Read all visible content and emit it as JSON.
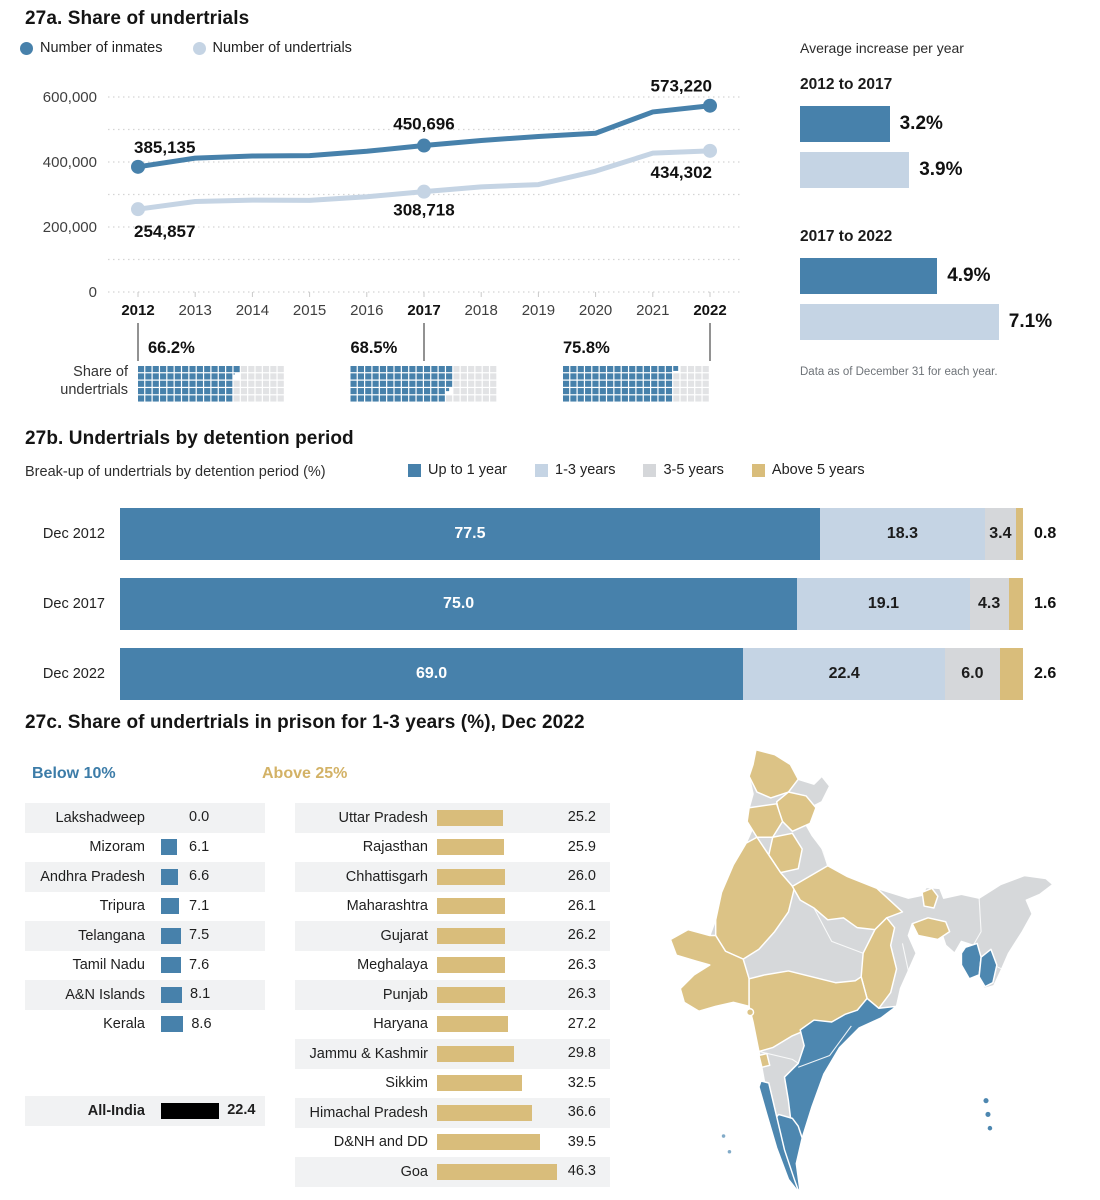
{
  "colors": {
    "dark_blue": "#4781ab",
    "light_blue": "#c5d4e4",
    "seg_gray": "#d5d7da",
    "gold": "#d9bd7b",
    "waffle_empty": "#e2e3e5",
    "row_bg": "#f1f2f3",
    "map_blue": "#4d87b0",
    "map_gold": "#dcc386",
    "map_gray": "#d6d8da",
    "black_bar": "#000000",
    "below_heading": "#3c7ca8",
    "above_heading": "#d3b266",
    "grid": "#d4d4d4",
    "axis_text": "#3f3f3f"
  },
  "fig27a": {
    "title": "27a. Share of undertrials",
    "legend": [
      {
        "label": "Number of inmates",
        "color": "dark_blue"
      },
      {
        "label": "Number of undertrials",
        "color": "light_blue"
      }
    ],
    "chart_data": {
      "type": "line",
      "x": [
        2012,
        2013,
        2014,
        2015,
        2016,
        2017,
        2018,
        2019,
        2020,
        2021,
        2022
      ],
      "bold_x": [
        2012,
        2017,
        2022
      ],
      "yticks": [
        0,
        200000,
        400000,
        600000
      ],
      "grid_step": 100000,
      "ylim": [
        0,
        650000
      ],
      "series": [
        {
          "name": "Number of inmates",
          "color": "dark_blue",
          "values": [
            385135,
            411992,
            418536,
            419623,
            433003,
            450696,
            466084,
            478600,
            488511,
            554034,
            573220
          ]
        },
        {
          "name": "Number of undertrials",
          "color": "light_blue",
          "values": [
            254857,
            278503,
            282879,
            282076,
            293058,
            308718,
            323537,
            330487,
            371848,
            427165,
            434302
          ]
        }
      ],
      "point_labels": [
        {
          "series": 0,
          "year": 2012,
          "label": "385,135"
        },
        {
          "series": 0,
          "year": 2017,
          "label": "450,696"
        },
        {
          "series": 0,
          "year": 2022,
          "label": "573,220"
        },
        {
          "series": 1,
          "year": 2012,
          "label": "254,857"
        },
        {
          "series": 1,
          "year": 2017,
          "label": "308,718"
        },
        {
          "series": 1,
          "year": 2022,
          "label": "434,302"
        }
      ]
    },
    "waffle": {
      "label_line1": "Share of",
      "label_line2": "undertrials",
      "items": [
        {
          "year": 2012,
          "pct": 66.2,
          "label": "66.2%"
        },
        {
          "year": 2017,
          "pct": 68.5,
          "label": "68.5%"
        },
        {
          "year": 2022,
          "pct": 75.8,
          "label": "75.8%"
        }
      ]
    },
    "side_panel": {
      "title": "Average increase per year",
      "groups": [
        {
          "label": "2012 to 2017",
          "bars": [
            {
              "value": 3.2,
              "label": "3.2%",
              "color": "dark_blue"
            },
            {
              "value": 3.9,
              "label": "3.9%",
              "color": "light_blue"
            }
          ]
        },
        {
          "label": "2017 to 2022",
          "bars": [
            {
              "value": 4.9,
              "label": "4.9%",
              "color": "dark_blue"
            },
            {
              "value": 7.1,
              "label": "7.1%",
              "color": "light_blue"
            }
          ]
        }
      ],
      "footnote": "Data as of December 31 for each year."
    }
  },
  "fig27b": {
    "title": "27b. Undertrials by detention period",
    "subtitle": "Break-up of undertrials by detention period (%)",
    "chart_data": {
      "type": "stacked-bar",
      "categories": [
        "Dec 2012",
        "Dec 2017",
        "Dec 2022"
      ],
      "series": [
        {
          "name": "Up to 1 year",
          "color": "dark_blue",
          "values": [
            77.5,
            75.0,
            69.0
          ]
        },
        {
          "name": "1-3 years",
          "color": "light_blue",
          "values": [
            18.3,
            19.1,
            22.4
          ]
        },
        {
          "name": "3-5 years",
          "color": "seg_gray",
          "values": [
            3.4,
            4.3,
            6.0
          ]
        },
        {
          "name": "Above 5 years",
          "color": "gold",
          "values": [
            0.8,
            1.6,
            2.6
          ]
        }
      ],
      "value_labels": [
        [
          "77.5",
          "18.3",
          "3.4",
          "0.8"
        ],
        [
          "75.0",
          "19.1",
          "4.3",
          "1.6"
        ],
        [
          "69.0",
          "22.4",
          "6.0",
          "2.6"
        ]
      ],
      "xlim": [
        0,
        100
      ]
    }
  },
  "fig27c": {
    "title": "27c. Share of undertrials in prison for 1-3 years (%), Dec 2022",
    "chart_data": {
      "type": "table",
      "below_10": [
        [
          "Lakshadweep",
          0.0
        ],
        [
          "Mizoram",
          6.1
        ],
        [
          "Andhra Pradesh",
          6.6
        ],
        [
          "Tripura",
          7.1
        ],
        [
          "Telangana",
          7.5
        ],
        [
          "Tamil Nadu",
          7.6
        ],
        [
          "A&N Islands",
          8.1
        ],
        [
          "Kerala",
          8.6
        ]
      ],
      "all_india": [
        "All-India",
        22.4
      ],
      "above_25": [
        [
          "Uttar Pradesh",
          25.2
        ],
        [
          "Rajasthan",
          25.9
        ],
        [
          "Chhattisgarh",
          26.0
        ],
        [
          "Maharashtra",
          26.1
        ],
        [
          "Gujarat",
          26.2
        ],
        [
          "Meghalaya",
          26.3
        ],
        [
          "Punjab",
          26.3
        ],
        [
          "Haryana",
          27.2
        ],
        [
          "Jammu & Kashmir",
          29.8
        ],
        [
          "Sikkim",
          32.5
        ],
        [
          "Himachal Pradesh",
          36.6
        ],
        [
          "D&NH and DD",
          39.5
        ],
        [
          "Goa",
          46.3
        ]
      ]
    },
    "below": {
      "heading": "Below 10%",
      "rows": [
        {
          "state": "Lakshadweep",
          "value": "0.0"
        },
        {
          "state": "Mizoram",
          "value": "6.1"
        },
        {
          "state": "Andhra Pradesh",
          "value": "6.6"
        },
        {
          "state": "Tripura",
          "value": "7.1"
        },
        {
          "state": "Telangana",
          "value": "7.5"
        },
        {
          "state": "Tamil Nadu",
          "value": "7.6"
        },
        {
          "state": "A&N Islands",
          "value": "8.1"
        },
        {
          "state": "Kerala",
          "value": "8.6"
        }
      ]
    },
    "all_india": {
      "state": "All-India",
      "value": "22.4"
    },
    "above": {
      "heading": "Above 25%",
      "rows": [
        {
          "state": "Uttar Pradesh",
          "value": "25.2"
        },
        {
          "state": "Rajasthan",
          "value": "25.9"
        },
        {
          "state": "Chhattisgarh",
          "value": "26.0"
        },
        {
          "state": "Maharashtra",
          "value": "26.1"
        },
        {
          "state": "Gujarat",
          "value": "26.2"
        },
        {
          "state": "Meghalaya",
          "value": "26.3"
        },
        {
          "state": "Punjab",
          "value": "26.3"
        },
        {
          "state": "Haryana",
          "value": "27.2"
        },
        {
          "state": "Jammu & Kashmir",
          "value": "29.8"
        },
        {
          "state": "Sikkim",
          "value": "32.5"
        },
        {
          "state": "Himachal Pradesh",
          "value": "36.6"
        },
        {
          "state": "D&NH and DD",
          "value": "39.5"
        },
        {
          "state": "Goa",
          "value": "46.3"
        }
      ]
    },
    "map": {
      "regions": {
        "jammu-kashmir": "gold",
        "himachal-pradesh": "gold",
        "punjab": "gold",
        "haryana": "gold",
        "rajasthan": "gold",
        "gujarat": "gold",
        "uttar-pradesh": "gold",
        "chhattisgarh": "gold",
        "maharashtra": "gold",
        "goa": "gold",
        "sikkim": "gold",
        "meghalaya": "gold",
        "dnh-dd": "gold",
        "andhra-telangana": "blue",
        "tamil-nadu": "blue",
        "kerala": "blue",
        "tripura": "blue",
        "mizoram": "blue",
        "an-islands": "blue",
        "lakshadweep": "blue",
        "india-base": "other"
      },
      "category_colors": {
        "gold": "map_gold",
        "blue": "map_blue",
        "other": "map_gray"
      }
    }
  }
}
